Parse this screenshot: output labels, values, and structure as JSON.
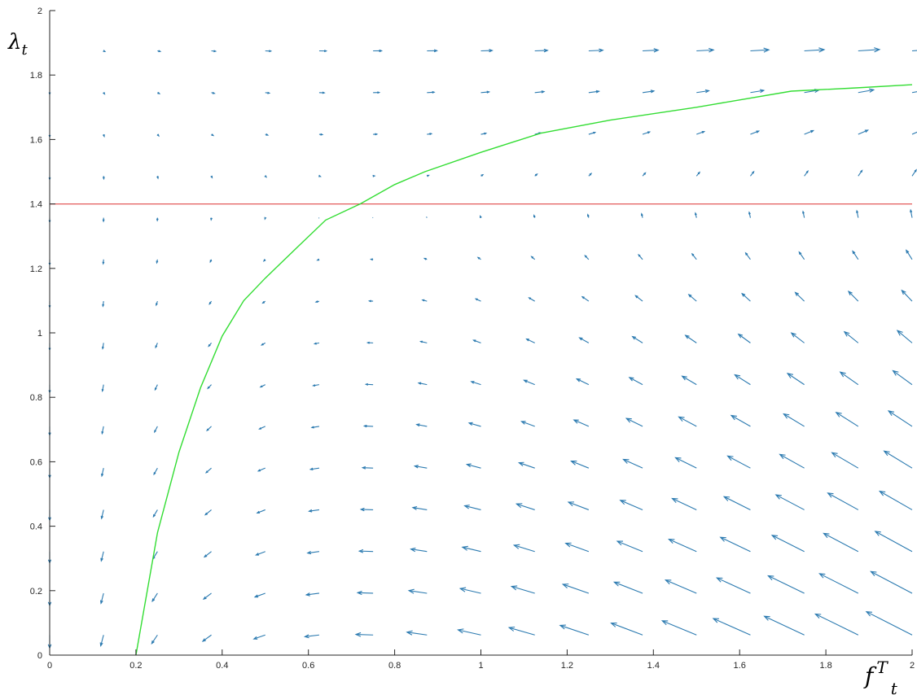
{
  "chart_data": {
    "type": "quiver",
    "title": "",
    "xlabel": {
      "base": "f",
      "sup": "T",
      "sub": "t"
    },
    "ylabel": {
      "base": "λ",
      "sub": "t"
    },
    "xlim": [
      0,
      2
    ],
    "ylim": [
      0,
      2
    ],
    "xticks": [
      {
        "v": 0,
        "label": "0"
      },
      {
        "v": 0.2,
        "label": "0.2"
      },
      {
        "v": 0.4,
        "label": "0.4"
      },
      {
        "v": 0.6,
        "label": "0.6"
      },
      {
        "v": 0.8,
        "label": "0.8"
      },
      {
        "v": 1,
        "label": "1"
      },
      {
        "v": 1.2,
        "label": "1.2"
      },
      {
        "v": 1.4,
        "label": "1.4"
      },
      {
        "v": 1.6,
        "label": "1.6"
      },
      {
        "v": 1.8,
        "label": "1.8"
      },
      {
        "v": 2,
        "label": "2"
      }
    ],
    "yticks": [
      {
        "v": 0,
        "label": "0"
      },
      {
        "v": 0.2,
        "label": "0.2"
      },
      {
        "v": 0.4,
        "label": "0.4"
      },
      {
        "v": 0.6,
        "label": "0.6"
      },
      {
        "v": 0.8,
        "label": "0.8"
      },
      {
        "v": 1,
        "label": "1"
      },
      {
        "v": 1.2,
        "label": "1.2"
      },
      {
        "v": 1.4,
        "label": "1.4"
      },
      {
        "v": 1.6,
        "label": "1.6"
      },
      {
        "v": 1.8,
        "label": "1.8"
      },
      {
        "v": 2,
        "label": "2"
      }
    ],
    "grid": false,
    "colors": {
      "arrows": "#2b7ab0",
      "curve": "#33dd33",
      "hline": "#e35b5b",
      "axis": "#262626"
    },
    "vector_field": {
      "x_start": 0,
      "x_end": 2,
      "x_count": 17,
      "y_start": 0.0625,
      "y_end": 1.875,
      "y_count": 15,
      "f_star": 0.72,
      "lambda_star": 1.4
    },
    "horizontal_line": {
      "y": 1.4
    },
    "curve": {
      "x": [
        0.2,
        0.25,
        0.3,
        0.35,
        0.4,
        0.45,
        0.5,
        0.57,
        0.64,
        0.72,
        0.8,
        0.87,
        1.0,
        1.14,
        1.3,
        1.5,
        1.72,
        1.87,
        2.0
      ],
      "y": [
        0.0,
        0.38,
        0.63,
        0.83,
        0.99,
        1.1,
        1.17,
        1.26,
        1.35,
        1.4,
        1.46,
        1.5,
        1.56,
        1.62,
        1.66,
        1.7,
        1.75,
        1.76,
        1.77
      ]
    }
  }
}
